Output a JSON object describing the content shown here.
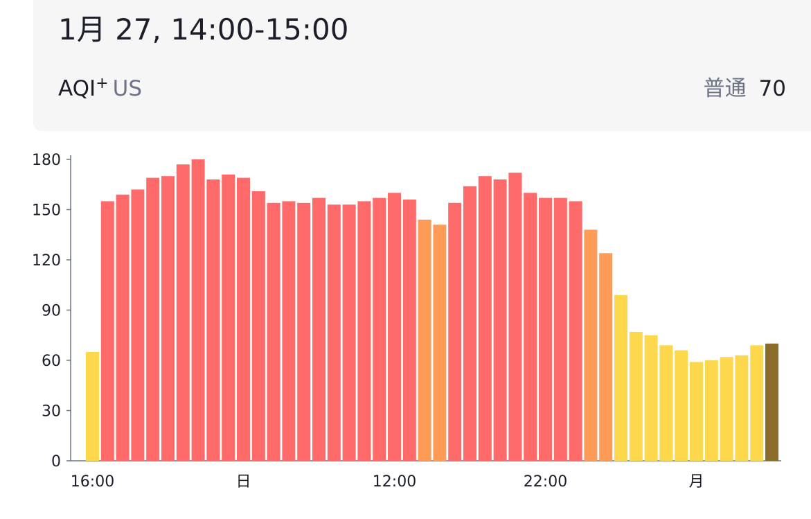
{
  "header": {
    "title": "1月 27, 14:00-15:00",
    "aqi_label": "AQI",
    "aqi_sup": "+",
    "aqi_region": "US",
    "status_text": "普通",
    "status_value": "70"
  },
  "colors": {
    "moderate": "#fdd74c",
    "unhealthy_sensitive": "#fe9b57",
    "unhealthy": "#fe6a69",
    "selected": "#8a6d2a",
    "axis": "#6b7384",
    "text": "#1c1f2a"
  },
  "chart_data": {
    "type": "bar",
    "title": "",
    "xlabel": "",
    "ylabel": "",
    "ylim": [
      0,
      180
    ],
    "yticks": [
      "0",
      "30",
      "60",
      "90",
      "120",
      "150",
      "180"
    ],
    "xticks": [
      {
        "label": "16:00",
        "index": 0
      },
      {
        "label": "日",
        "index": 10
      },
      {
        "label": "12:00",
        "index": 20
      },
      {
        "label": "22:00",
        "index": 30
      },
      {
        "label": "月",
        "index": 40
      }
    ],
    "values": [
      65,
      155,
      159,
      162,
      169,
      170,
      177,
      180,
      168,
      171,
      169,
      161,
      154,
      155,
      154,
      157,
      153,
      153,
      155,
      157,
      160,
      156,
      144,
      141,
      154,
      164,
      170,
      168,
      172,
      160,
      157,
      157,
      155,
      138,
      124,
      99,
      77,
      75,
      69,
      66,
      59,
      60,
      62,
      63,
      69,
      70
    ],
    "selected_index": 45,
    "grid": false
  }
}
